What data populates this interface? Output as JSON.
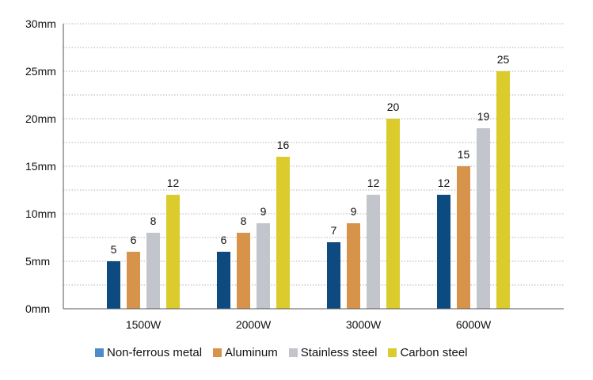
{
  "chart_data": {
    "type": "bar",
    "categories": [
      "1500W",
      "2000W",
      "3000W",
      "6000W"
    ],
    "y_ticks": [
      "0mm",
      "5mm",
      "10mm",
      "15mm",
      "20mm",
      "25mm",
      "30mm"
    ],
    "ylim": [
      0,
      30
    ],
    "grid": true,
    "legend_position": "bottom",
    "series": [
      {
        "name": "Non-ferrous metal",
        "color": "#0d4a80",
        "values": [
          5,
          6,
          7,
          12
        ]
      },
      {
        "name": "Aluminum",
        "color": "#d8934a",
        "values": [
          6,
          8,
          9,
          15
        ]
      },
      {
        "name": "Stainless steel",
        "color": "#c3c5cc",
        "values": [
          8,
          9,
          12,
          19
        ]
      },
      {
        "name": "Carbon steel",
        "color": "#dccb2c",
        "values": [
          12,
          16,
          20,
          25
        ]
      }
    ],
    "legend_swatch_colors": [
      "#4d8cc8",
      "#d8934a",
      "#c3c5cc",
      "#dccb2c"
    ]
  }
}
